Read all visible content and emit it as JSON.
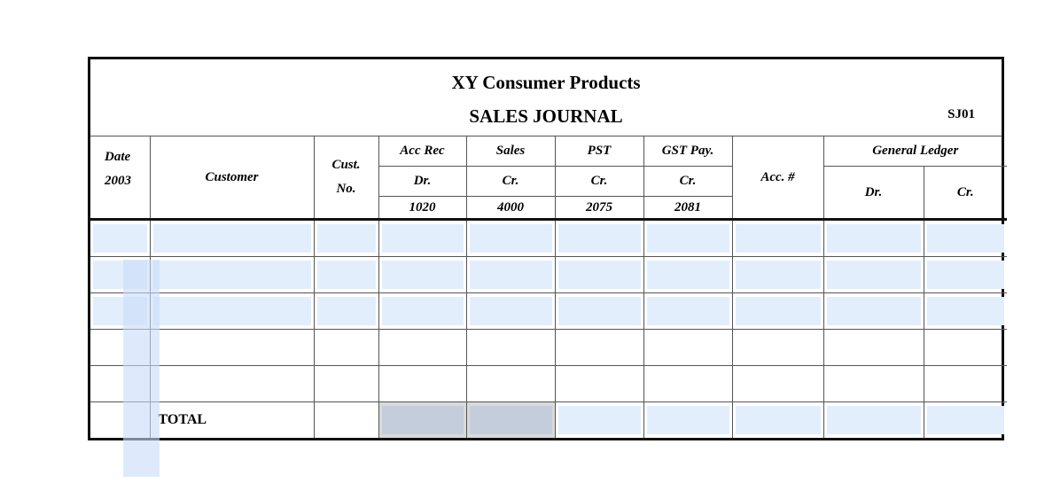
{
  "header": {
    "company": "XY Consumer Products",
    "title": "SALES JOURNAL",
    "code": "SJ01"
  },
  "columns": {
    "date": "Date",
    "year": "2003",
    "customer": "Customer",
    "cust1": "Cust.",
    "cust2": "No.",
    "accrec": "Acc Rec",
    "sales": "Sales",
    "pst": "PST",
    "gst": "GST Pay.",
    "acc": "Acc. #",
    "gl": "General Ledger",
    "dr": "Dr.",
    "cr": "Cr.",
    "gl_dr": "Dr.",
    "gl_cr": "Cr.",
    "accrec_no": "1020",
    "sales_no": "4000",
    "pst_no": "2075",
    "gst_no": "2081"
  },
  "total_label": "TOTAL",
  "field_color": "#e3eefc",
  "filled_rows": 3,
  "blank_rows": 2
}
